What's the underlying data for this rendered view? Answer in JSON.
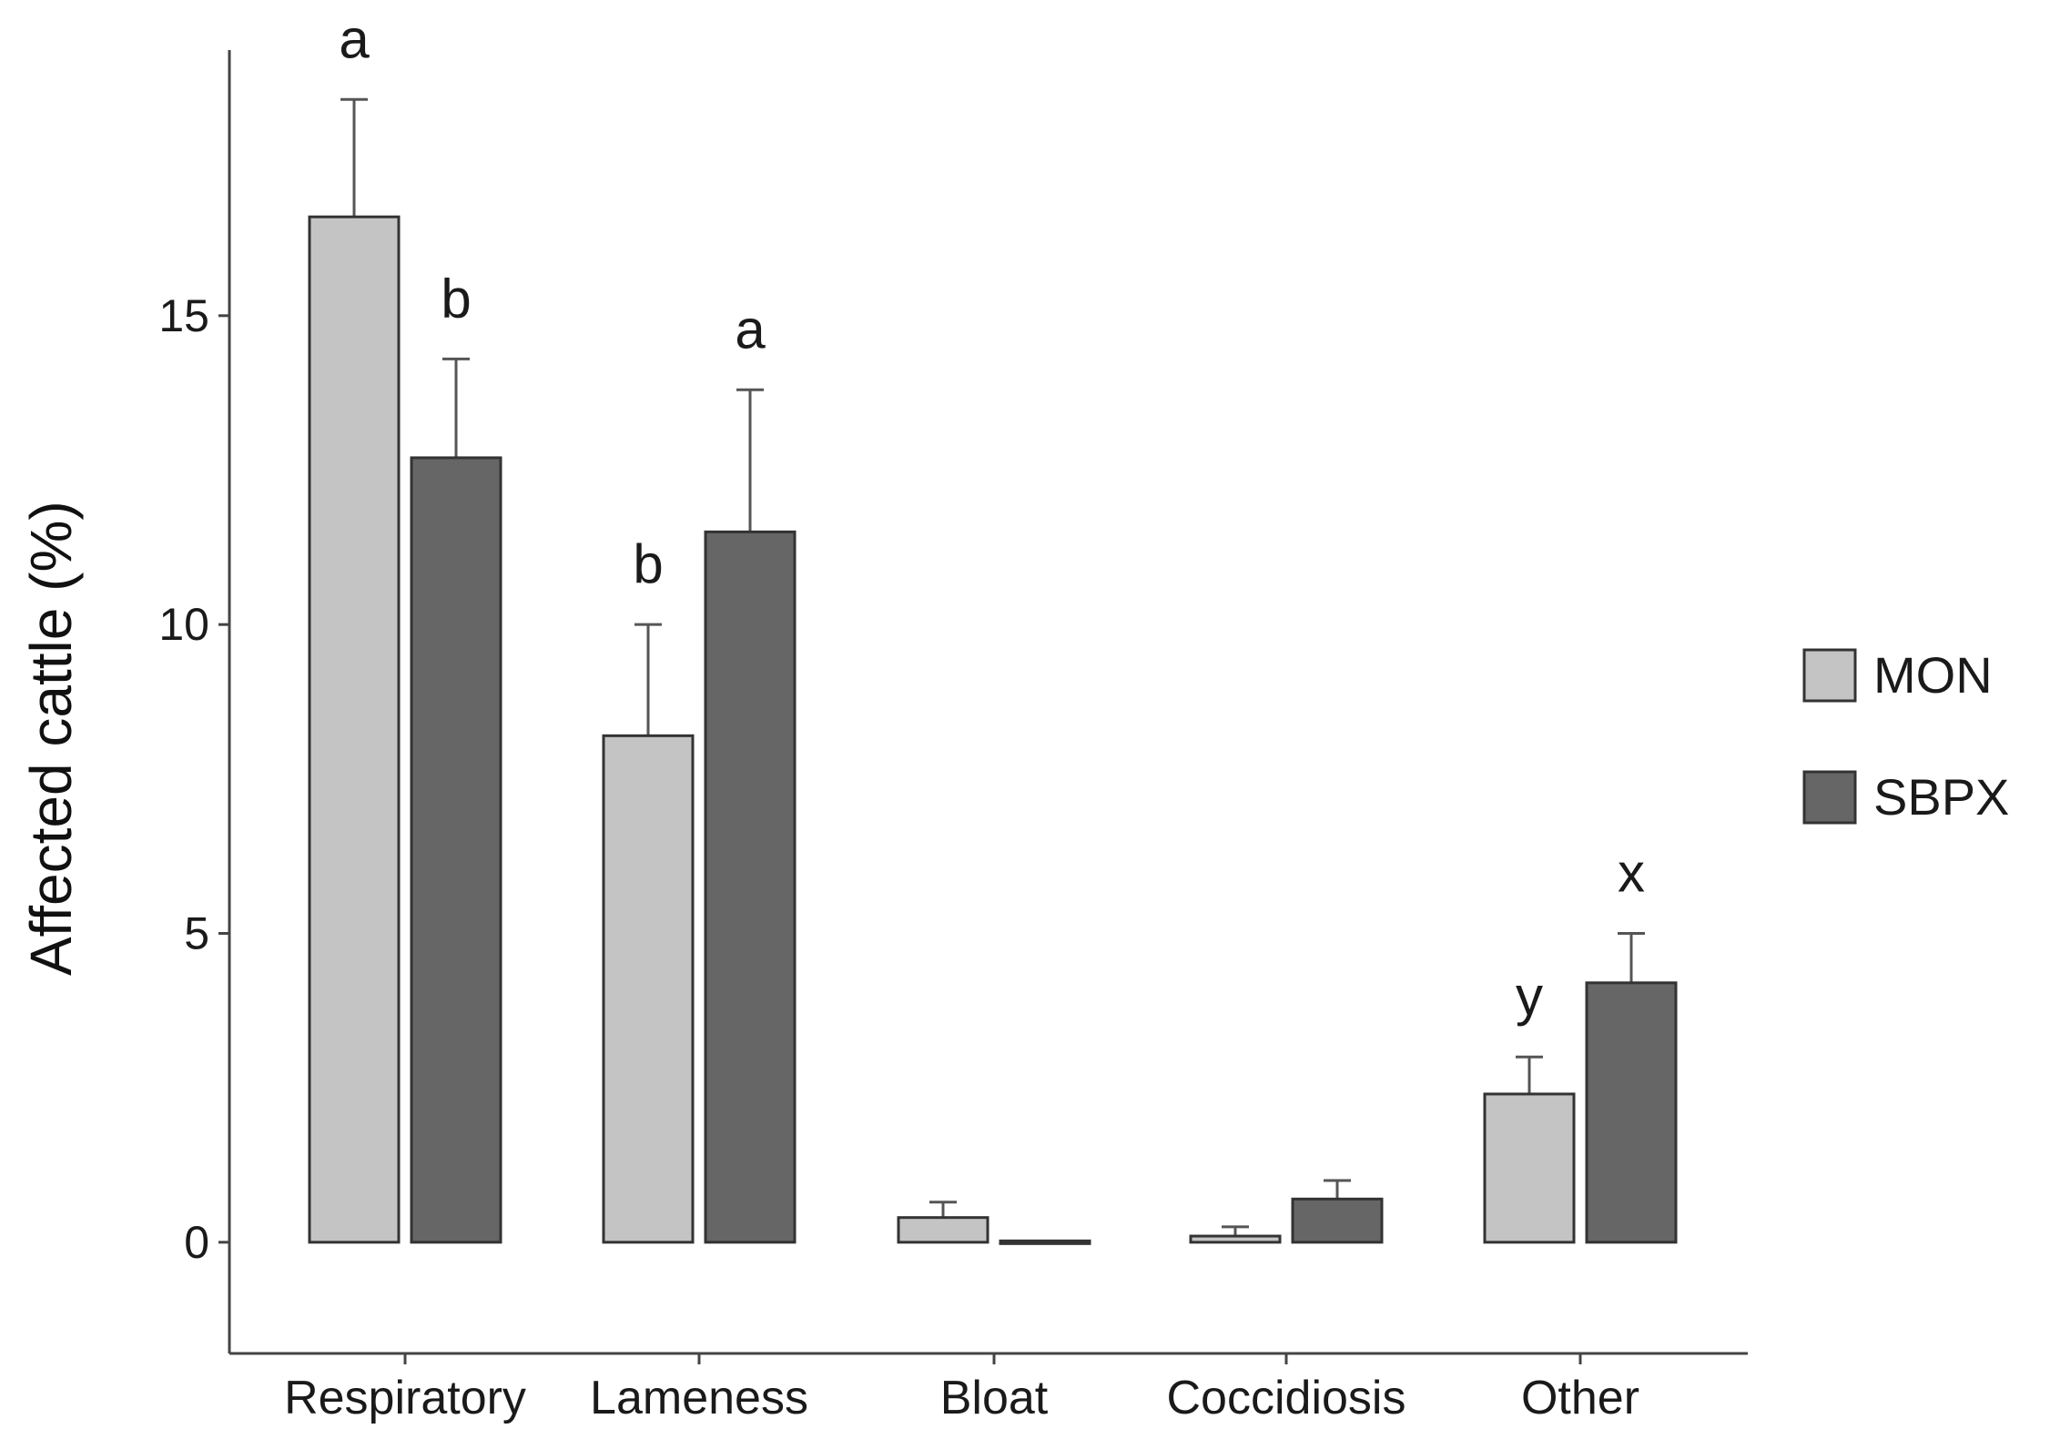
{
  "chart_data": {
    "type": "bar",
    "title": "",
    "xlabel": "",
    "ylabel": "Affected cattle (%)",
    "ylim": [
      -1.8,
      19.3
    ],
    "yticks": [
      0,
      5,
      10,
      15
    ],
    "grid": false,
    "legend_position": "right",
    "categories": [
      "Respiratory",
      "Lameness",
      "Bloat",
      "Coccidiosis",
      "Other"
    ],
    "series": [
      {
        "name": "MON",
        "color": "#c4c4c4",
        "values": [
          16.6,
          8.2,
          0.4,
          0.1,
          2.4
        ],
        "errors": [
          1.9,
          1.8,
          0.25,
          0.15,
          0.6
        ],
        "labels": [
          "a",
          "b",
          "",
          "",
          "y"
        ]
      },
      {
        "name": "SBPX",
        "color": "#666666",
        "values": [
          12.7,
          11.5,
          0.0,
          0.7,
          4.2
        ],
        "errors": [
          1.6,
          2.3,
          0.0,
          0.3,
          0.8
        ],
        "labels": [
          "b",
          "a",
          "",
          "",
          "x"
        ]
      }
    ]
  }
}
